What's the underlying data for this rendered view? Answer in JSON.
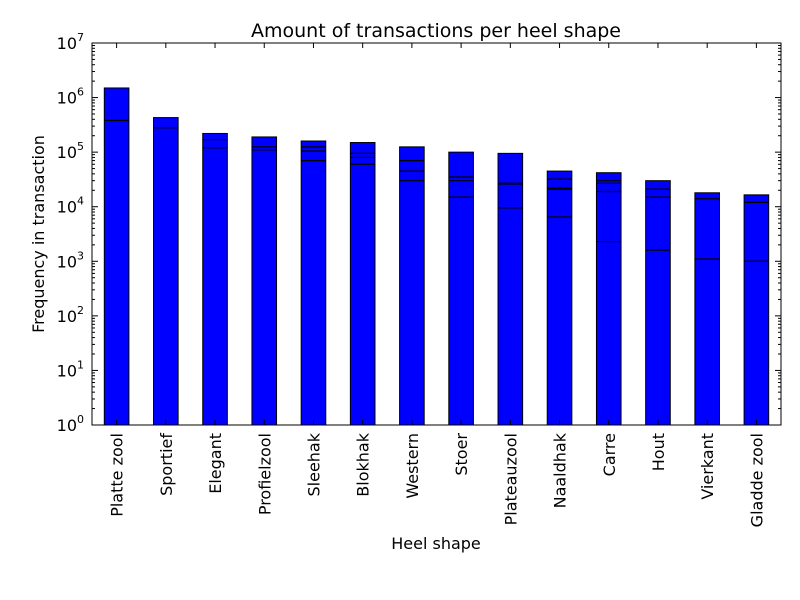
{
  "chart_data": {
    "type": "bar",
    "title": "Amount of transactions per heel shape",
    "xlabel": "Heel shape",
    "ylabel": "Frequency in transaction",
    "yscale": "log",
    "ylim": [
      1,
      10000000
    ],
    "yticks": [
      {
        "value": 1,
        "mantissa": "10",
        "exp": "0"
      },
      {
        "value": 10,
        "mantissa": "10",
        "exp": "1"
      },
      {
        "value": 100,
        "mantissa": "10",
        "exp": "2"
      },
      {
        "value": 1000,
        "mantissa": "10",
        "exp": "3"
      },
      {
        "value": 10000,
        "mantissa": "10",
        "exp": "4"
      },
      {
        "value": 100000,
        "mantissa": "10",
        "exp": "5"
      },
      {
        "value": 1000000,
        "mantissa": "10",
        "exp": "6"
      },
      {
        "value": 10000000,
        "mantissa": "10",
        "exp": "7"
      }
    ],
    "categories": [
      "Platte zool",
      "Sportief",
      "Elegant",
      "Profielzool",
      "Sleehak",
      "Blokhak",
      "Western",
      "Stoer",
      "Plateauzool",
      "Naaldhak",
      "Carre",
      "Hout",
      "Vierkant",
      "Gladde zool"
    ],
    "values": [
      1500000,
      430000,
      220000,
      190000,
      160000,
      150000,
      125000,
      100000,
      95000,
      45000,
      42000,
      30000,
      18000,
      16500
    ],
    "segment_boundaries": [
      [
        380000
      ],
      [
        280000
      ],
      [
        170000,
        120000
      ],
      [
        125000,
        110000
      ],
      [
        125000,
        105000,
        70000
      ],
      [
        95000,
        80000,
        60000
      ],
      [
        70000,
        45000,
        30000
      ],
      [
        35000,
        30000,
        15000
      ],
      [
        27000,
        26000,
        9500
      ],
      [
        32000,
        22000,
        21000,
        6500
      ],
      [
        30000,
        27000,
        19000,
        2300
      ],
      [
        21000,
        15000,
        1600
      ],
      [
        14000,
        1100
      ],
      [
        12000,
        1000
      ]
    ],
    "bar_color": "#0000ff",
    "edge_color": "#000000",
    "grid": false,
    "legend": "none"
  }
}
